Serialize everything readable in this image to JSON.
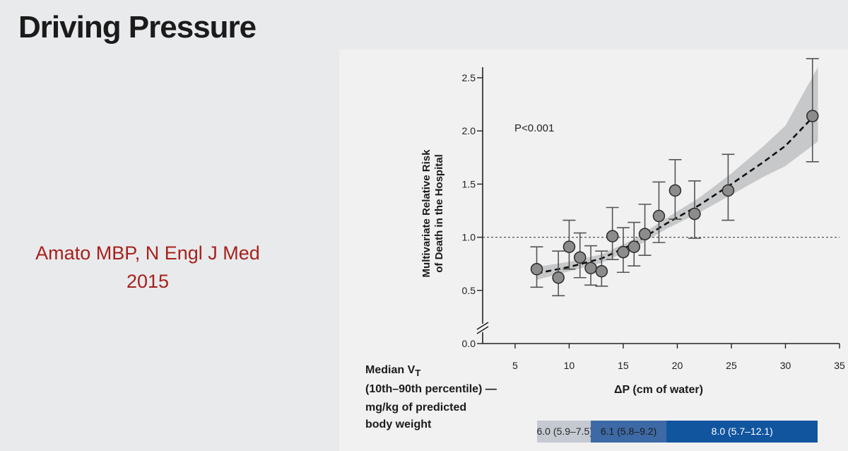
{
  "slide": {
    "title": "Driving Pressure",
    "citation_line1": "Amato MBP, N Engl J Med",
    "citation_line2": "2015"
  },
  "colors": {
    "citation": "#a6211d",
    "marker_fill": "#8c8c8c",
    "band": "#b8b9bb",
    "vt_segments": [
      "#c5c9d1",
      "#3d6aa6",
      "#12559f"
    ]
  },
  "chart_data": {
    "type": "scatter",
    "title": "",
    "annotation": "P<0.001",
    "xlabel": "ΔP (cm of water)",
    "ylabel_line1": "Multivariate Relative Risk",
    "ylabel_line2": "of Death in the Hospital",
    "xlim": [
      2,
      35
    ],
    "ylim": [
      0,
      2.6
    ],
    "y_axis_break": true,
    "xticks": [
      5,
      10,
      15,
      20,
      25,
      30,
      35
    ],
    "xtick_labels": [
      "5",
      "10",
      "15",
      "20",
      "25",
      "30",
      "35"
    ],
    "yticks": [
      0,
      0.5,
      1.0,
      1.5,
      2.0,
      2.5
    ],
    "ytick_labels": [
      "0.0",
      "0.5",
      "1.0",
      "1.5",
      "2.0",
      "2.5"
    ],
    "reference_line_y": 1.0,
    "points": [
      {
        "x": 7,
        "y": 0.7,
        "lo": 0.53,
        "hi": 0.91
      },
      {
        "x": 9,
        "y": 0.62,
        "lo": 0.45,
        "hi": 0.87
      },
      {
        "x": 10,
        "y": 0.91,
        "lo": 0.7,
        "hi": 1.16
      },
      {
        "x": 11,
        "y": 0.81,
        "lo": 0.62,
        "hi": 1.04
      },
      {
        "x": 12,
        "y": 0.71,
        "lo": 0.55,
        "hi": 0.92
      },
      {
        "x": 13,
        "y": 0.68,
        "lo": 0.54,
        "hi": 0.87
      },
      {
        "x": 14,
        "y": 1.01,
        "lo": 0.79,
        "hi": 1.28
      },
      {
        "x": 15,
        "y": 0.86,
        "lo": 0.67,
        "hi": 1.09
      },
      {
        "x": 16,
        "y": 0.91,
        "lo": 0.73,
        "hi": 1.14
      },
      {
        "x": 17,
        "y": 1.03,
        "lo": 0.83,
        "hi": 1.31
      },
      {
        "x": 18.3,
        "y": 1.2,
        "lo": 0.95,
        "hi": 1.52
      },
      {
        "x": 19.8,
        "y": 1.44,
        "lo": 1.17,
        "hi": 1.73
      },
      {
        "x": 21.6,
        "y": 1.22,
        "lo": 0.99,
        "hi": 1.53
      },
      {
        "x": 24.7,
        "y": 1.44,
        "lo": 1.16,
        "hi": 1.78
      },
      {
        "x": 32.5,
        "y": 2.14,
        "lo": 1.71,
        "hi": 2.68
      }
    ],
    "fit_line": [
      {
        "x": 7,
        "y": 0.66
      },
      {
        "x": 10,
        "y": 0.72
      },
      {
        "x": 13,
        "y": 0.8
      },
      {
        "x": 16,
        "y": 0.94
      },
      {
        "x": 19,
        "y": 1.13
      },
      {
        "x": 22,
        "y": 1.3
      },
      {
        "x": 25,
        "y": 1.5
      },
      {
        "x": 28,
        "y": 1.71
      },
      {
        "x": 30,
        "y": 1.86
      },
      {
        "x": 33,
        "y": 2.18
      }
    ],
    "confidence_band": [
      {
        "x": 7,
        "lo": 0.6,
        "hi": 0.72
      },
      {
        "x": 10,
        "lo": 0.68,
        "hi": 0.77
      },
      {
        "x": 13,
        "lo": 0.76,
        "hi": 0.84
      },
      {
        "x": 16,
        "lo": 0.9,
        "hi": 0.98
      },
      {
        "x": 19,
        "lo": 1.08,
        "hi": 1.18
      },
      {
        "x": 22,
        "lo": 1.23,
        "hi": 1.37
      },
      {
        "x": 25,
        "lo": 1.4,
        "hi": 1.6
      },
      {
        "x": 28,
        "lo": 1.57,
        "hi": 1.86
      },
      {
        "x": 30,
        "lo": 1.67,
        "hi": 2.05
      },
      {
        "x": 33,
        "lo": 1.9,
        "hi": 2.6
      }
    ],
    "median_vt": {
      "label_line1": "Median V",
      "label_sub": "T",
      "label_line2": "(10th–90th percentile) —",
      "label_line3": "mg/kg of predicted",
      "label_line4": "body weight",
      "segments": [
        {
          "label": "6.0 (5.9–7.5)",
          "x_start": 7,
          "x_end": 12
        },
        {
          "label": "6.1 (5.8–9.2)",
          "x_start": 12,
          "x_end": 19
        },
        {
          "label": "8.0 (5.7–12.1)",
          "x_start": 19,
          "x_end": 33
        }
      ]
    }
  }
}
